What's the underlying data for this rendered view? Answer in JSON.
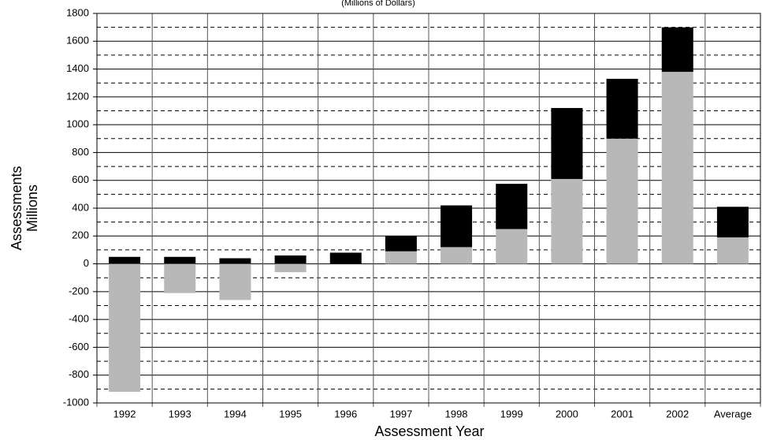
{
  "chart_data": {
    "type": "bar",
    "stacked": true,
    "subtitle": "(Millions of Dollars)",
    "x_label": "Assessment Year",
    "y_label": [
      "Assessments",
      "Millions"
    ],
    "categories": [
      "1992",
      "1993",
      "1994",
      "1995",
      "1996",
      "1997",
      "1998",
      "1999",
      "2000",
      "2001",
      "2002",
      "Average"
    ],
    "series": [
      {
        "color": "#b8b8b8",
        "values": [
          -920,
          -210,
          -260,
          -60,
          0,
          90,
          120,
          250,
          610,
          900,
          1380,
          190
        ]
      },
      {
        "color": "#000000",
        "values": [
          50,
          50,
          40,
          60,
          80,
          110,
          300,
          325,
          510,
          430,
          320,
          220
        ]
      }
    ],
    "ylim": [
      -1000,
      1800
    ],
    "yticks": [
      -1000,
      -800,
      -600,
      -400,
      -200,
      0,
      200,
      400,
      600,
      800,
      1000,
      1200,
      1400,
      1600,
      1800
    ],
    "grid": true
  }
}
